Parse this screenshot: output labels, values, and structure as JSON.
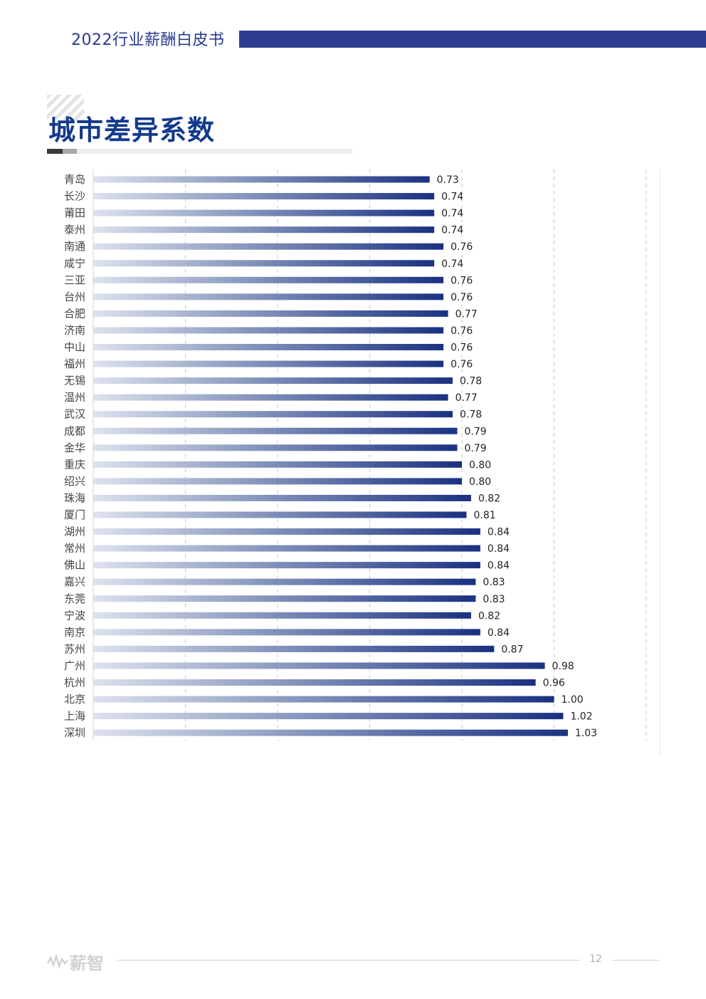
{
  "header": {
    "report_title": "2022行业薪酬白皮书"
  },
  "section": {
    "title": "城市差异系数"
  },
  "colors": {
    "bar_start": "#dde2ee",
    "bar_end": "#1a3181",
    "header_bar": "#2e3d8f",
    "title": "#133a8c"
  },
  "chart_data": {
    "type": "bar",
    "orientation": "horizontal",
    "title": "",
    "xlabel": "",
    "ylabel": "",
    "xlim": [
      0,
      1.2
    ],
    "grid": true,
    "legend": "none",
    "categories": [
      "青岛",
      "长沙",
      "莆田",
      "泰州",
      "南通",
      "咸宁",
      "三亚",
      "台州",
      "合肥",
      "济南",
      "中山",
      "福州",
      "无锡",
      "温州",
      "武汉",
      "成都",
      "金华",
      "重庆",
      "绍兴",
      "珠海",
      "厦门",
      "湖州",
      "常州",
      "佛山",
      "嘉兴",
      "东莞",
      "宁波",
      "南京",
      "苏州",
      "广州",
      "杭州",
      "北京",
      "上海",
      "深圳"
    ],
    "values": [
      0.73,
      0.74,
      0.74,
      0.74,
      0.76,
      0.74,
      0.76,
      0.76,
      0.77,
      0.76,
      0.76,
      0.76,
      0.78,
      0.77,
      0.78,
      0.79,
      0.79,
      0.8,
      0.8,
      0.82,
      0.81,
      0.84,
      0.84,
      0.84,
      0.83,
      0.83,
      0.82,
      0.84,
      0.87,
      0.98,
      0.96,
      1.0,
      1.02,
      1.03
    ],
    "value_labels": [
      "0.73",
      "0.74",
      "0.74",
      "0.74",
      "0.76",
      "0.74",
      "0.76",
      "0.76",
      "0.77",
      "0.76",
      "0.76",
      "0.76",
      "0.78",
      "0.77",
      "0.78",
      "0.79",
      "0.79",
      "0.80",
      "0.80",
      "0.82",
      "0.81",
      "0.84",
      "0.84",
      "0.84",
      "0.83",
      "0.83",
      "0.82",
      "0.84",
      "0.87",
      "0.98",
      "0.96",
      "1.00",
      "1.02",
      "1.03"
    ]
  },
  "footer": {
    "logo_text": "薪智",
    "page_number": "12"
  }
}
